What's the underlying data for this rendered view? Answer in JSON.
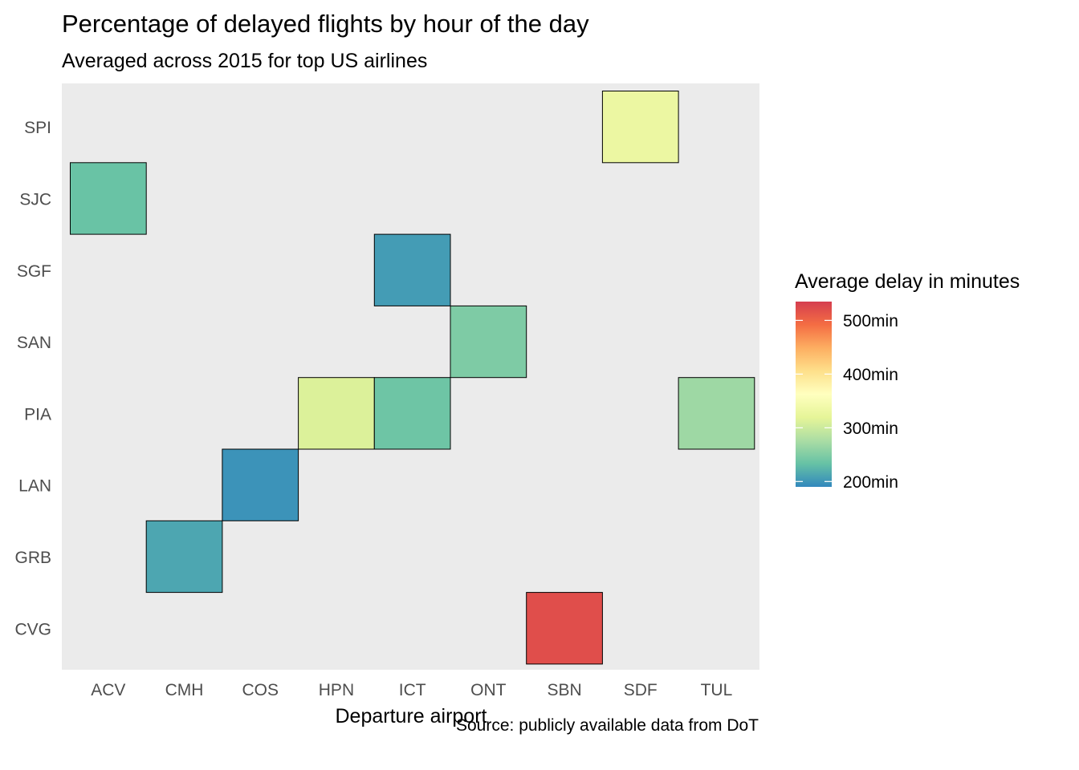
{
  "chart_data": {
    "type": "heatmap",
    "title": "Percentage of delayed flights by hour of the day",
    "subtitle": "Averaged across 2015 for top US airlines",
    "xlabel": "Departure airport",
    "ylabel": "",
    "caption": "Source: publicly available data from DoT",
    "x_categories": [
      "ACV",
      "CMH",
      "COS",
      "HPN",
      "ICT",
      "ONT",
      "SBN",
      "SDF",
      "TUL"
    ],
    "y_categories": [
      "CVG",
      "GRB",
      "LAN",
      "PIA",
      "SAN",
      "SGF",
      "SJC",
      "SPI"
    ],
    "cells": [
      {
        "x": "SDF",
        "y": "SPI",
        "value": 330
      },
      {
        "x": "ACV",
        "y": "SJC",
        "value": 235
      },
      {
        "x": "ICT",
        "y": "SGF",
        "value": 205
      },
      {
        "x": "ONT",
        "y": "SAN",
        "value": 248
      },
      {
        "x": "HPN",
        "y": "PIA",
        "value": 312
      },
      {
        "x": "ICT",
        "y": "PIA",
        "value": 238
      },
      {
        "x": "TUL",
        "y": "PIA",
        "value": 268
      },
      {
        "x": "COS",
        "y": "LAN",
        "value": 198
      },
      {
        "x": "CMH",
        "y": "GRB",
        "value": 212
      },
      {
        "x": "SBN",
        "y": "CVG",
        "value": 520
      }
    ],
    "legend": {
      "title": "Average delay in minutes",
      "range": [
        190,
        535
      ],
      "breaks": [
        200,
        300,
        400,
        500
      ],
      "labels": [
        "200min",
        "300min",
        "400min",
        "500min"
      ],
      "placement": "right",
      "palette": [
        "#3288bd",
        "#66c2a5",
        "#abdda4",
        "#e6f598",
        "#ffffbf",
        "#fee08b",
        "#fdae61",
        "#f46d43",
        "#d53e4f"
      ]
    },
    "panel_background": "#ebebeb",
    "grid": false
  }
}
